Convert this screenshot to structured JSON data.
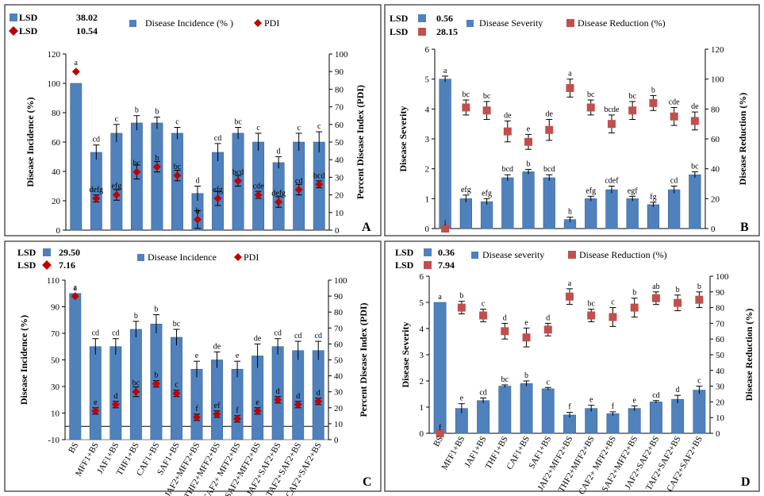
{
  "categories": [
    "BS",
    "MFF1+BS",
    "JAF1+BS",
    "THF1+BS",
    "CAF1+BS",
    "SAF1+BS",
    "JAF2+MFF2+BS",
    "THF2+MFF2+BS",
    "CAF2+ MFF2+BS",
    "SAF2+MFF2+BS",
    "JAF2+SAF2+BS",
    "TAF2+SAF2+BS",
    "CAF2+SAF2+BS"
  ],
  "colors": {
    "bar": "#4f81bd",
    "bar_edge": "#3a6394",
    "diamond": "#c00000",
    "square": "#c0504d"
  },
  "chart_data": [
    {
      "panel": "A",
      "type": "bar",
      "lsd": [
        {
          "marker": "square",
          "label": "LSD",
          "value": "38.02"
        },
        {
          "marker": "diamond",
          "label": "LSD",
          "value": "10.54"
        }
      ],
      "ylabel": "Disease Incidence  (%)",
      "y2label": "Percent Disease Index (PDI)",
      "ylim": [
        0,
        120
      ],
      "y2lim": [
        0,
        100
      ],
      "yticks": [
        "0",
        "20",
        "40",
        "60",
        "80",
        "100",
        "120"
      ],
      "y2ticks": [
        "0",
        "10",
        "20",
        "30",
        "40",
        "50",
        "60",
        "70",
        "80",
        "90",
        "100"
      ],
      "series": [
        {
          "name": "Disease Incidence (% )",
          "kind": "bar",
          "values": [
            100,
            53,
            66,
            73,
            73,
            66,
            25,
            53,
            66,
            60,
            46,
            60,
            60
          ],
          "err": [
            0,
            5,
            6,
            5,
            4,
            4,
            5,
            6,
            4,
            6,
            4,
            6,
            7
          ],
          "letters": [
            "",
            "cd",
            "c",
            "b",
            "b",
            "c",
            "d",
            "cd",
            "bc",
            "c",
            "d",
            "c",
            "c"
          ]
        },
        {
          "name": "PDI",
          "kind": "diamond",
          "values": [
            90,
            18,
            20,
            33,
            36,
            31,
            6,
            18,
            28,
            20,
            16,
            23,
            26
          ],
          "err": [
            0,
            2,
            3,
            4,
            3,
            3,
            5,
            4,
            3,
            2,
            3,
            3,
            2
          ],
          "letters": [
            "a",
            "defg",
            "efg",
            "bc",
            "b",
            "bc",
            "h",
            "efg",
            "bcd",
            "cde",
            "defg",
            "cd",
            "bcd"
          ]
        }
      ]
    },
    {
      "panel": "B",
      "type": "bar",
      "lsd": [
        {
          "marker": "square-blue",
          "label": "LSD",
          "value": "0.56"
        },
        {
          "marker": "square-red",
          "label": "LSD",
          "value": "28.15"
        }
      ],
      "ylabel": "Disease Severity",
      "y2label": "Disease Reduction  (%)",
      "ylim": [
        0,
        6
      ],
      "y2lim": [
        0,
        120
      ],
      "yticks": [
        "0",
        "1",
        "2",
        "3",
        "4",
        "5",
        "6"
      ],
      "y2ticks": [
        "0",
        "20",
        "40",
        "60",
        "80",
        "100",
        "120"
      ],
      "series": [
        {
          "name": "Disease Severity",
          "kind": "bar",
          "values": [
            5,
            1,
            0.9,
            1.7,
            1.9,
            1.7,
            0.3,
            1,
            1.3,
            1,
            0.8,
            1.3,
            1.8
          ],
          "err": [
            0.1,
            0.12,
            0.1,
            0.1,
            0.08,
            0.1,
            0.08,
            0.08,
            0.12,
            0.08,
            0.08,
            0.12,
            0.1
          ],
          "letters": [
            "a",
            "efg",
            "efg",
            "bcd",
            "b",
            "bcd",
            "h",
            "efg",
            "cdef",
            "egf",
            "fg",
            "cd",
            "bc"
          ]
        },
        {
          "name": "Disease Reduction (%)",
          "kind": "square",
          "values": [
            0,
            81,
            79,
            65,
            58,
            66,
            94,
            81,
            70,
            79,
            84,
            75,
            72
          ],
          "err": [
            0,
            5,
            6,
            7,
            5,
            7,
            6,
            5,
            6,
            6,
            5,
            6,
            6
          ],
          "letters": [
            "i",
            "bc",
            "bc",
            "de",
            "e",
            "de",
            "a",
            "bc",
            "bcde",
            "bc",
            "b",
            "cde",
            "de"
          ]
        }
      ]
    },
    {
      "panel": "C",
      "type": "bar",
      "lsd": [
        {
          "marker": "square",
          "label": "LSD",
          "value": "29.50"
        },
        {
          "marker": "diamond",
          "label": "LSD",
          "value": "7.16"
        }
      ],
      "ylabel": "Disease Incidence  (%)",
      "y2label": "Percent Disease Index (PDI)",
      "ylim": [
        -10,
        110
      ],
      "y2lim": [
        0,
        100
      ],
      "yticks": [
        "-10",
        "10",
        "30",
        "50",
        "70",
        "90",
        "110"
      ],
      "y2ticks": [
        "0",
        "10",
        "20",
        "30",
        "40",
        "50",
        "60",
        "70",
        "80",
        "90",
        "100"
      ],
      "series": [
        {
          "name": "Disease Incidence",
          "kind": "bar",
          "values": [
            100,
            60,
            60,
            73,
            77,
            67,
            43,
            50,
            43,
            53,
            60,
            57,
            57
          ],
          "err": [
            0,
            6,
            6,
            6,
            7,
            6,
            6,
            6,
            6,
            9,
            6,
            7,
            7
          ],
          "letters": [
            "a",
            "cd",
            "cd",
            "b",
            "b",
            "bc",
            "e",
            "de",
            "e",
            "de",
            "cd",
            "cd",
            "cd"
          ]
        },
        {
          "name": "PDI",
          "kind": "diamond",
          "values": [
            90,
            18,
            22,
            30,
            35,
            29,
            14,
            16,
            13,
            18,
            25,
            22,
            24
          ],
          "err": [
            0,
            2,
            2,
            3,
            2,
            2,
            2,
            2,
            2,
            2,
            2,
            2,
            2
          ],
          "letters": [
            "a",
            "e",
            "d",
            "bc",
            "b",
            "c",
            "f",
            "ef",
            "f",
            "e",
            "d",
            "d",
            "d"
          ]
        }
      ]
    },
    {
      "panel": "D",
      "type": "bar",
      "lsd": [
        {
          "marker": "square-blue",
          "label": "LSD",
          "value": "0.36"
        },
        {
          "marker": "square-red",
          "label": "LSD",
          "value": "7.94"
        }
      ],
      "ylabel": "Disease Severity",
      "y2label": "Disease Reduction  (%)",
      "ylim": [
        0,
        6
      ],
      "y2lim": [
        0,
        100
      ],
      "yticks": [
        "0",
        "1",
        "2",
        "3",
        "4",
        "5",
        "6"
      ],
      "y2ticks": [
        "0",
        "10",
        "20",
        "30",
        "40",
        "50",
        "60",
        "70",
        "80",
        "90",
        "100"
      ],
      "series": [
        {
          "name": "Disease severity",
          "kind": "bar",
          "values": [
            5,
            0.95,
            1.25,
            1.8,
            1.9,
            1.7,
            0.7,
            0.95,
            0.75,
            0.95,
            1.2,
            1.3,
            1.65
          ],
          "err": [
            0,
            0.18,
            0.1,
            0.05,
            0.1,
            0.05,
            0.1,
            0.12,
            0.07,
            0.1,
            0.05,
            0.15,
            0.15
          ],
          "letters": [
            "a",
            "e",
            "cd",
            "bc",
            "b",
            "c",
            "f",
            "e",
            "f",
            "e",
            "cd",
            "d",
            "c"
          ]
        },
        {
          "name": "Disease Reduction (%)",
          "kind": "square",
          "values": [
            0,
            80,
            75,
            65,
            61,
            66,
            87,
            75,
            74,
            80,
            86,
            83,
            85
          ],
          "err": [
            0,
            4,
            4,
            5,
            6,
            4,
            5,
            4,
            6,
            6,
            4,
            5,
            5
          ],
          "letters": [
            "f",
            "b",
            "c",
            "d",
            "e",
            "d",
            "a",
            "bc",
            "c",
            "b",
            "ab",
            "b",
            "b"
          ]
        }
      ]
    }
  ]
}
